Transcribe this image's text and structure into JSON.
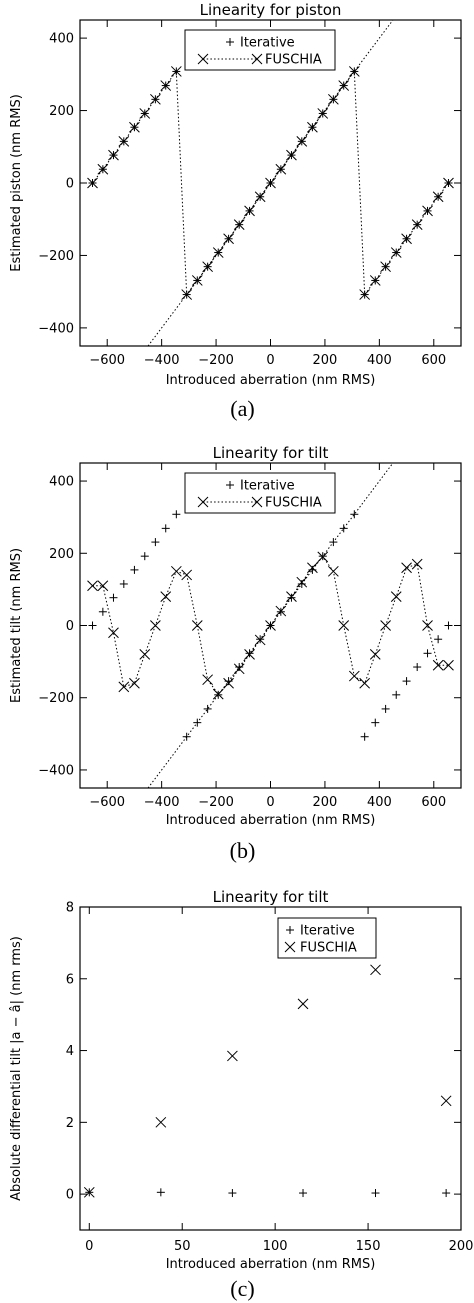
{
  "chart_data": [
    {
      "type": "scatter",
      "title": "Linearity for piston",
      "xlabel": "Introduced aberration (nm RMS)",
      "ylabel": "Estimated piston (nm RMS)",
      "panel_label": "(a)",
      "xlim": [
        -700,
        700
      ],
      "ylim": [
        -450,
        450
      ],
      "xticks": [
        -600,
        -400,
        -200,
        0,
        200,
        400,
        600
      ],
      "yticks": [
        -400,
        -200,
        0,
        200,
        400
      ],
      "legend_position": "top-center",
      "reference_line": "y = x",
      "series": [
        {
          "name": "Iterative",
          "marker": "plus",
          "x": [
            -654,
            -616,
            -577,
            -539,
            -500,
            -462,
            -423,
            -385,
            -346,
            -308,
            -269,
            -231,
            -192,
            -154,
            -115,
            -77,
            -38,
            0,
            38,
            77,
            115,
            154,
            192,
            231,
            269,
            308,
            346,
            385,
            423,
            462,
            500,
            539,
            577,
            616,
            654
          ],
          "y": [
            0,
            38,
            77,
            115,
            154,
            192,
            231,
            269,
            308,
            -308,
            -269,
            -231,
            -192,
            -154,
            -115,
            -77,
            -38,
            0,
            38,
            77,
            115,
            154,
            192,
            231,
            269,
            308,
            -308,
            -269,
            -231,
            -192,
            -154,
            -115,
            -77,
            -38,
            0
          ]
        },
        {
          "name": "FUSCHIA",
          "marker": "cross",
          "connected": true,
          "x": [
            -654,
            -616,
            -577,
            -539,
            -500,
            -462,
            -423,
            -385,
            -346,
            -308,
            -269,
            -231,
            -192,
            -154,
            -115,
            -77,
            -38,
            0,
            38,
            77,
            115,
            154,
            192,
            231,
            269,
            308,
            346,
            385,
            423,
            462,
            500,
            539,
            577,
            616,
            654
          ],
          "y": [
            0,
            38,
            77,
            115,
            154,
            192,
            231,
            269,
            308,
            -308,
            -269,
            -231,
            -192,
            -154,
            -115,
            -77,
            -38,
            0,
            38,
            77,
            115,
            154,
            192,
            231,
            269,
            308,
            -308,
            -269,
            -231,
            -192,
            -154,
            -115,
            -77,
            -38,
            0
          ]
        }
      ]
    },
    {
      "type": "scatter",
      "title": "Linearity for tilt",
      "xlabel": "Introduced aberration (nm RMS)",
      "ylabel": "Estimated tilt (nm RMS)",
      "panel_label": "(b)",
      "xlim": [
        -700,
        700
      ],
      "ylim": [
        -450,
        450
      ],
      "xticks": [
        -600,
        -400,
        -200,
        0,
        200,
        400,
        600
      ],
      "yticks": [
        -400,
        -200,
        0,
        200,
        400
      ],
      "legend_position": "top-center",
      "reference_line": "y = x",
      "series": [
        {
          "name": "Iterative",
          "marker": "plus",
          "x": [
            -654,
            -616,
            -577,
            -539,
            -500,
            -462,
            -423,
            -385,
            -346,
            -308,
            -269,
            -231,
            -192,
            -154,
            -115,
            -77,
            -38,
            0,
            38,
            77,
            115,
            154,
            192,
            231,
            269,
            308,
            346,
            385,
            423,
            462,
            500,
            539,
            577,
            616,
            654
          ],
          "y": [
            0,
            38,
            77,
            115,
            154,
            192,
            231,
            269,
            308,
            -308,
            -269,
            -231,
            -192,
            -154,
            -115,
            -77,
            -38,
            0,
            38,
            77,
            115,
            154,
            192,
            231,
            269,
            308,
            -308,
            -269,
            -231,
            -192,
            -154,
            -115,
            -77,
            -38,
            0
          ]
        },
        {
          "name": "FUSCHIA",
          "marker": "cross",
          "connected": true,
          "x": [
            -654,
            -616,
            -577,
            -539,
            -500,
            -462,
            -423,
            -385,
            -346,
            -308,
            -269,
            -231,
            -192,
            -154,
            -115,
            -77,
            -38,
            0,
            38,
            77,
            115,
            154,
            192,
            231,
            269,
            308,
            346,
            385,
            423,
            462,
            500,
            539,
            577,
            616,
            654
          ],
          "y": [
            110,
            110,
            -20,
            -170,
            -160,
            -80,
            0,
            80,
            150,
            140,
            0,
            -150,
            -190,
            -160,
            -120,
            -80,
            -40,
            0,
            40,
            80,
            120,
            160,
            190,
            150,
            0,
            -140,
            -160,
            -80,
            0,
            80,
            160,
            170,
            0,
            -110,
            -110
          ]
        }
      ]
    },
    {
      "type": "scatter",
      "title": "Linearity for tilt",
      "xlabel": "Introduced aberration (nm RMS)",
      "ylabel": "Absolute differential tilt |a − â| (nm rms)",
      "panel_label": "(c)",
      "xlim": [
        -5,
        200
      ],
      "ylim": [
        -1,
        8
      ],
      "xticks": [
        0,
        50,
        100,
        150,
        200
      ],
      "yticks": [
        0,
        2,
        4,
        6,
        8
      ],
      "legend_position": "top-right",
      "series": [
        {
          "name": "Iterative",
          "marker": "plus",
          "x": [
            0,
            38.5,
            77,
            115,
            154,
            192
          ],
          "y": [
            0.05,
            0.05,
            0.03,
            0.03,
            0.03,
            0.03
          ]
        },
        {
          "name": "FUSCHIA",
          "marker": "cross",
          "connected": false,
          "x": [
            0,
            38.5,
            77,
            115,
            154,
            192
          ],
          "y": [
            0.05,
            2.0,
            3.85,
            5.3,
            6.25,
            2.6
          ]
        }
      ]
    }
  ]
}
